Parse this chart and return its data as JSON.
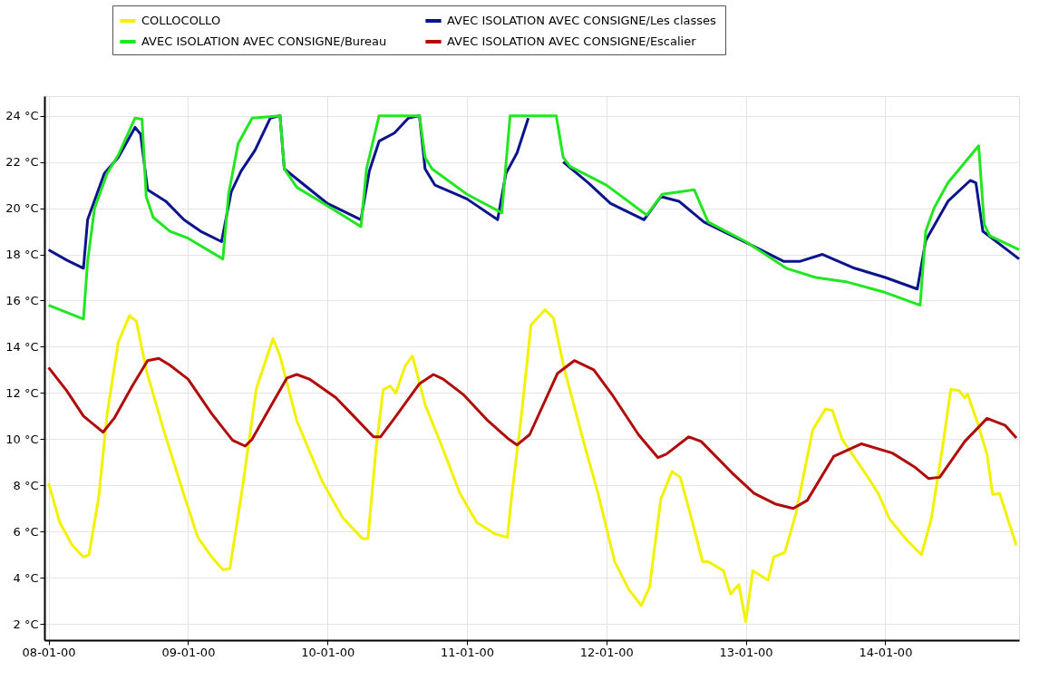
{
  "chart_data": {
    "type": "line",
    "legend": "top",
    "grid": true,
    "line_style": "solid",
    "marker": "none",
    "xlim": [
      "2000-01-07T23:17",
      "2000-01-14T23:02"
    ],
    "xticks": [
      {
        "value": "2000-01-08",
        "label": "08-01-00"
      },
      {
        "value": "2000-01-09",
        "label": "09-01-00"
      },
      {
        "value": "2000-01-10",
        "label": "10-01-00"
      },
      {
        "value": "2000-01-11",
        "label": "11-01-00"
      },
      {
        "value": "2000-01-12",
        "label": "12-01-00"
      },
      {
        "value": "2000-01-13",
        "label": "13-01-00"
      },
      {
        "value": "2000-01-14",
        "label": "14-01-00"
      }
    ],
    "ylim": [
      1.3,
      24.85
    ],
    "yticks": [
      {
        "value": 2,
        "label": "2 °C"
      },
      {
        "value": 4,
        "label": "4 °C"
      },
      {
        "value": 6,
        "label": "6 °C"
      },
      {
        "value": 8,
        "label": "8 °C"
      },
      {
        "value": 10,
        "label": "10 °C"
      },
      {
        "value": 12,
        "label": "12 °C"
      },
      {
        "value": 14,
        "label": "14 °C"
      },
      {
        "value": 16,
        "label": "16 °C"
      },
      {
        "value": 18,
        "label": "18 °C"
      },
      {
        "value": 20,
        "label": "20 °C"
      },
      {
        "value": 22,
        "label": "22 °C"
      },
      {
        "value": 24,
        "label": "24 °C"
      }
    ],
    "series": [
      {
        "name": "COLLOCOLLO",
        "color": "#f2f200",
        "x": [
          "2000-01-08T00:00",
          "2000-01-08T01:55",
          "2000-01-08T04:05",
          "2000-01-08T06:00",
          "2000-01-08T06:58",
          "2000-01-08T08:38",
          "2000-01-08T10:05",
          "2000-01-08T12:00",
          "2000-01-08T13:55",
          "2000-01-08T15:07",
          "2000-01-08T16:48",
          "2000-01-08T19:41",
          "2000-01-08T23:17",
          "2000-01-09T01:41",
          "2000-01-09T04:05",
          "2000-01-09T06:00",
          "2000-01-09T07:12",
          "2000-01-09T09:22",
          "2000-01-09T11:46",
          "2000-01-09T14:38",
          "2000-01-09T15:50",
          "2000-01-09T18:43",
          "2000-01-09T23:02",
          "2000-01-10T02:38",
          "2000-01-10T06:00",
          "2000-01-10T06:58",
          "2000-01-10T08:24",
          "2000-01-10T09:36",
          "2000-01-10T10:48",
          "2000-01-10T11:46",
          "2000-01-10T13:26",
          "2000-01-10T14:38",
          "2000-01-10T16:48",
          "2000-01-10T19:41",
          "2000-01-10T22:48",
          "2000-01-11T01:41",
          "2000-01-11T04:48",
          "2000-01-11T06:58",
          "2000-01-11T07:41",
          "2000-01-11T09:22",
          "2000-01-11T11:02",
          "2000-01-11T13:26",
          "2000-01-11T14:53",
          "2000-01-11T16:48",
          "2000-01-11T20:24",
          "2000-01-11T22:34",
          "2000-01-12T01:26",
          "2000-01-12T03:50",
          "2000-01-12T06:00",
          "2000-01-12T07:26",
          "2000-01-12T09:22",
          "2000-01-12T11:17",
          "2000-01-12T12:43",
          "2000-01-12T14:24",
          "2000-01-12T16:34",
          "2000-01-12T17:31",
          "2000-01-12T20:10",
          "2000-01-12T21:22",
          "2000-01-12T22:48",
          "2000-01-13T00:00",
          "2000-01-13T01:12",
          "2000-01-13T03:50",
          "2000-01-13T04:48",
          "2000-01-13T06:43",
          "2000-01-13T08:38",
          "2000-01-13T11:31",
          "2000-01-13T13:41",
          "2000-01-13T14:53",
          "2000-01-13T16:34",
          "2000-01-13T20:38",
          "2000-01-13T22:48",
          "2000-01-14T00:43",
          "2000-01-14T03:50",
          "2000-01-14T06:14",
          "2000-01-14T07:55",
          "2000-01-14T09:50",
          "2000-01-14T11:17",
          "2000-01-14T12:43",
          "2000-01-14T13:41",
          "2000-01-14T14:10",
          "2000-01-14T15:50",
          "2000-01-14T17:31",
          "2000-01-14T18:29",
          "2000-01-14T19:41",
          "2000-01-14T22:34"
        ],
        "values": [
          8.1,
          6.4,
          5.4,
          4.9,
          5.0,
          7.5,
          11.1,
          14.2,
          15.35,
          15.1,
          13.0,
          10.5,
          7.6,
          5.75,
          4.9,
          4.35,
          4.4,
          7.9,
          12.2,
          14.35,
          13.6,
          10.8,
          8.2,
          6.6,
          5.7,
          5.7,
          9.7,
          12.15,
          12.3,
          12.0,
          13.2,
          13.6,
          11.5,
          9.7,
          7.65,
          6.4,
          5.9,
          5.75,
          7.5,
          11.0,
          14.95,
          15.6,
          15.25,
          13.0,
          9.6,
          7.65,
          4.7,
          3.5,
          2.8,
          3.6,
          7.4,
          8.6,
          8.35,
          6.8,
          4.7,
          4.7,
          4.3,
          3.3,
          3.7,
          2.1,
          4.3,
          3.9,
          4.9,
          5.1,
          6.8,
          10.4,
          11.3,
          11.25,
          10.0,
          8.5,
          7.65,
          6.55,
          5.6,
          5.0,
          6.55,
          9.6,
          12.15,
          12.1,
          11.8,
          11.95,
          10.75,
          9.35,
          7.6,
          7.65,
          5.4
        ]
      },
      {
        "name": "AVEC ISOLATION  AVEC CONSIGNE/Les classes",
        "color": "#0c148c",
        "x": [
          "2000-01-08T00:00",
          "2000-01-08T03:07",
          "2000-01-08T06:00",
          "2000-01-08T06:43",
          "2000-01-08T09:36",
          "2000-01-08T12:00",
          "2000-01-08T14:53",
          "2000-01-08T15:50",
          "2000-01-08T17:02",
          "2000-01-08T20:10",
          "2000-01-08T23:17",
          "2000-01-09T02:10",
          "2000-01-09T05:46",
          "2000-01-09T07:26",
          "2000-01-09T09:07",
          "2000-01-09T11:31",
          "2000-01-09T14:10",
          "2000-01-09T15:50",
          "2000-01-09T16:34",
          "2000-01-10T00:00",
          "2000-01-10T05:46",
          "2000-01-10T07:12",
          "2000-01-10T08:53",
          "2000-01-10T11:31",
          "2000-01-10T13:55",
          "2000-01-10T15:50",
          "2000-01-10T16:48",
          "2000-01-10T18:29",
          "2000-01-11T00:00",
          "2000-01-11T05:17",
          "2000-01-11T06:43",
          "2000-01-11T08:38",
          "2000-01-11T10:34",
          "2000-01-11T15:22",
          "2000-01-11T16:34",
          "2000-01-11T20:53",
          "2000-01-12T00:43",
          "2000-01-12T06:29",
          "2000-01-12T09:22",
          "2000-01-12T12:29",
          "2000-01-12T16:48",
          "2000-01-13T00:58",
          "2000-01-13T06:29",
          "2000-01-13T09:22",
          "2000-01-13T13:12",
          "2000-01-13T18:43",
          "2000-01-14T00:00",
          "2000-01-14T05:31",
          "2000-01-14T06:58",
          "2000-01-14T10:48",
          "2000-01-14T14:38",
          "2000-01-14T15:36",
          "2000-01-14T16:48",
          "2000-01-14T23:02"
        ],
        "values": [
          18.2,
          17.75,
          17.4,
          19.5,
          21.5,
          22.2,
          23.5,
          23.2,
          20.8,
          20.3,
          19.5,
          19.0,
          18.55,
          20.7,
          21.6,
          22.5,
          23.9,
          24.0,
          21.7,
          20.2,
          19.5,
          21.6,
          22.9,
          23.25,
          23.9,
          24.0,
          21.7,
          21.0,
          20.4,
          19.5,
          21.5,
          22.4,
          23.9,
          null,
          22.0,
          21.1,
          20.2,
          19.5,
          20.5,
          20.3,
          19.4,
          18.4,
          17.7,
          17.7,
          18.0,
          17.4,
          17.0,
          16.5,
          18.6,
          20.3,
          21.2,
          21.1,
          19.0,
          17.8
        ]
      },
      {
        "name": "AVEC ISOLATION  AVEC CONSIGNE/Bureau",
        "color": "#22e622",
        "x": [
          "2000-01-08T00:00",
          "2000-01-08T06:00",
          "2000-01-08T06:43",
          "2000-01-08T07:55",
          "2000-01-08T10:05",
          "2000-01-08T12:00",
          "2000-01-08T14:53",
          "2000-01-08T16:05",
          "2000-01-08T16:48",
          "2000-01-08T18:00",
          "2000-01-08T20:53",
          "2000-01-09T00:00",
          "2000-01-09T06:00",
          "2000-01-09T06:58",
          "2000-01-09T08:38",
          "2000-01-09T11:02",
          "2000-01-09T15:50",
          "2000-01-09T16:34",
          "2000-01-09T18:43",
          "2000-01-10T00:00",
          "2000-01-10T05:46",
          "2000-01-10T06:43",
          "2000-01-10T08:53",
          "2000-01-10T15:50",
          "2000-01-10T16:48",
          "2000-01-10T18:00",
          "2000-01-11T00:00",
          "2000-01-11T06:00",
          "2000-01-11T07:26",
          "2000-01-11T15:22",
          "2000-01-11T16:34",
          "2000-01-11T17:46",
          "2000-01-12T00:00",
          "2000-01-12T06:58",
          "2000-01-12T09:36",
          "2000-01-12T15:07",
          "2000-01-12T17:31",
          "2000-01-13T00:00",
          "2000-01-13T06:58",
          "2000-01-13T12:00",
          "2000-01-13T17:31",
          "2000-01-14T00:00",
          "2000-01-14T06:00",
          "2000-01-14T06:58",
          "2000-01-14T08:24",
          "2000-01-14T10:48",
          "2000-01-14T16:05",
          "2000-01-14T17:02",
          "2000-01-14T18:00",
          "2000-01-14T23:02"
        ],
        "values": [
          15.8,
          15.2,
          17.7,
          20.0,
          21.5,
          22.3,
          23.9,
          23.85,
          20.5,
          19.6,
          19.0,
          18.7,
          17.8,
          20.6,
          22.8,
          23.9,
          24.0,
          21.7,
          20.9,
          20.1,
          19.2,
          21.7,
          24.0,
          24.0,
          22.2,
          21.7,
          20.6,
          19.8,
          24.0,
          24.0,
          22.2,
          21.8,
          21.0,
          19.7,
          20.6,
          20.8,
          19.4,
          18.55,
          17.4,
          17.0,
          16.8,
          16.35,
          15.8,
          19.0,
          20.0,
          21.1,
          22.7,
          19.3,
          18.8,
          18.2
        ]
      },
      {
        "name": "AVEC ISOLATION  AVEC CONSIGNE/Escalier",
        "color": "#b00a0a",
        "x": [
          "2000-01-08T00:00",
          "2000-01-08T03:07",
          "2000-01-08T06:00",
          "2000-01-08T09:22",
          "2000-01-08T11:17",
          "2000-01-08T14:24",
          "2000-01-08T17:02",
          "2000-01-08T18:58",
          "2000-01-08T20:53",
          "2000-01-09T00:00",
          "2000-01-09T04:05",
          "2000-01-09T07:41",
          "2000-01-09T09:50",
          "2000-01-09T11:02",
          "2000-01-09T14:10",
          "2000-01-09T17:02",
          "2000-01-09T18:43",
          "2000-01-09T20:53",
          "2000-01-10T01:26",
          "2000-01-10T04:19",
          "2000-01-10T07:55",
          "2000-01-10T09:07",
          "2000-01-10T11:31",
          "2000-01-10T15:50",
          "2000-01-10T18:14",
          "2000-01-10T19:55",
          "2000-01-10T23:31",
          "2000-01-11T03:36",
          "2000-01-11T07:12",
          "2000-01-11T08:38",
          "2000-01-11T10:48",
          "2000-01-11T15:36",
          "2000-01-11T18:29",
          "2000-01-11T21:50",
          "2000-01-12T01:12",
          "2000-01-12T05:31",
          "2000-01-12T08:53",
          "2000-01-12T10:19",
          "2000-01-12T14:10",
          "2000-01-12T16:19",
          "2000-01-12T21:36",
          "2000-01-13T01:26",
          "2000-01-13T05:02",
          "2000-01-13T08:10",
          "2000-01-13T10:34",
          "2000-01-13T15:07",
          "2000-01-13T19:55",
          "2000-01-14T01:12",
          "2000-01-14T05:02",
          "2000-01-14T07:26",
          "2000-01-14T09:22",
          "2000-01-14T13:41",
          "2000-01-14T17:31",
          "2000-01-14T20:38",
          "2000-01-14T22:34"
        ],
        "values": [
          13.1,
          12.1,
          11.0,
          10.3,
          10.9,
          12.3,
          13.4,
          13.5,
          13.2,
          12.6,
          11.1,
          9.95,
          9.7,
          10.0,
          11.4,
          12.65,
          12.8,
          12.6,
          11.8,
          11.05,
          10.1,
          10.1,
          10.9,
          12.4,
          12.8,
          12.6,
          11.9,
          10.8,
          10.0,
          9.75,
          10.2,
          12.85,
          13.4,
          13.0,
          11.85,
          10.2,
          9.2,
          9.35,
          10.1,
          9.9,
          8.55,
          7.65,
          7.2,
          7.0,
          7.35,
          9.25,
          9.8,
          9.4,
          8.8,
          8.3,
          8.35,
          9.9,
          10.9,
          10.6,
          10.05
        ]
      }
    ]
  }
}
